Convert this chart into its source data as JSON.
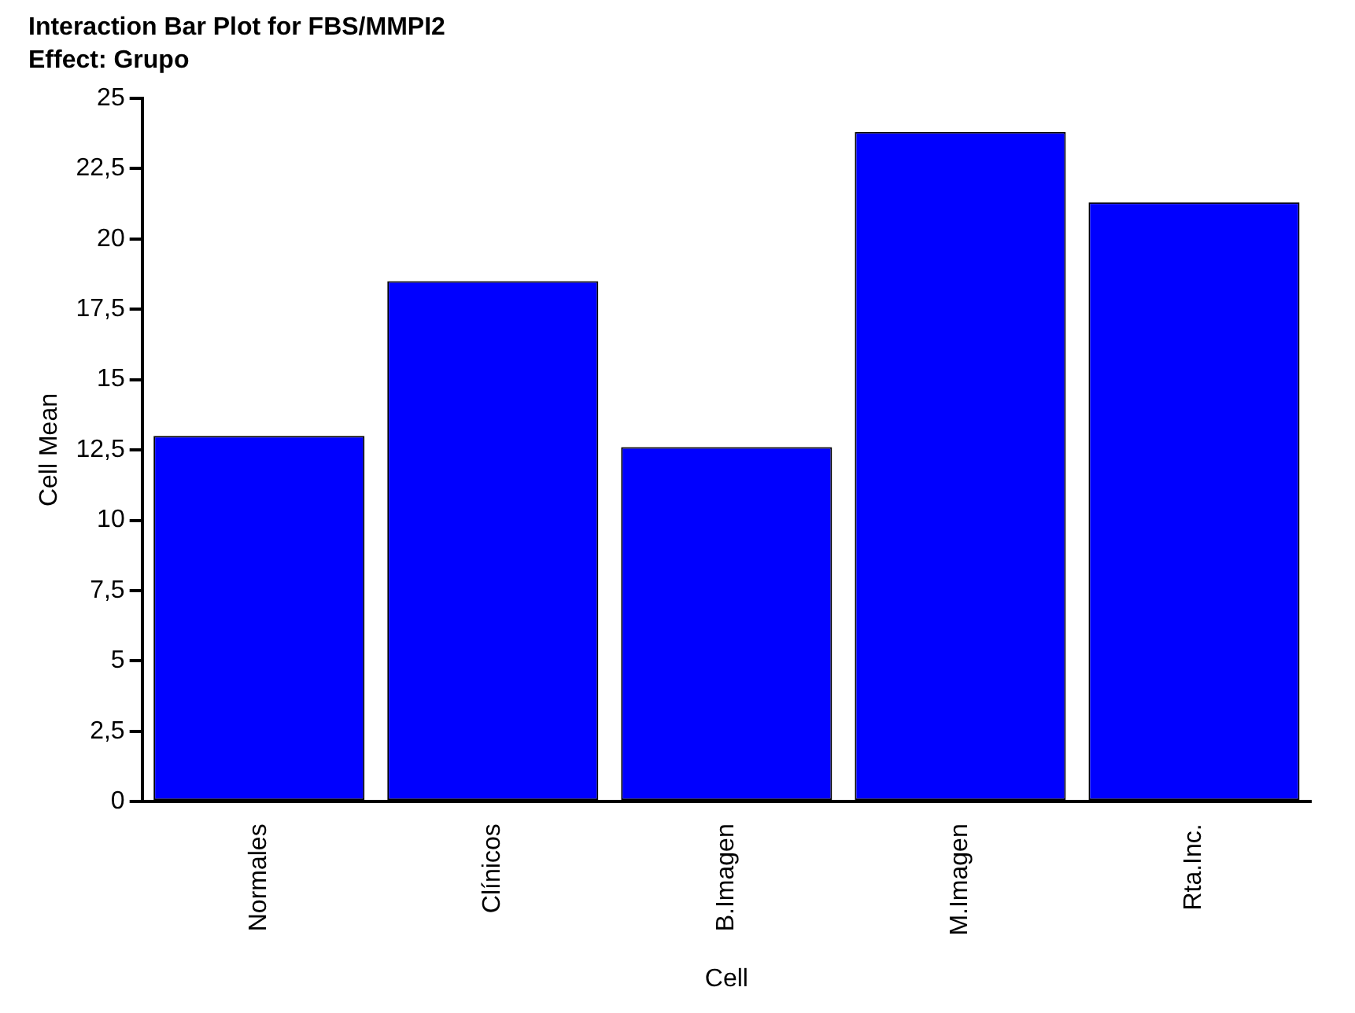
{
  "chart_data": {
    "type": "bar",
    "title": "Interaction Bar Plot for FBS/MMPI2",
    "subtitle": "Effect: Grupo",
    "xlabel": "Cell",
    "ylabel": "Cell Mean",
    "categories": [
      "Normales",
      "Clínicos",
      "B.Imagen",
      "M.Imagen",
      "Rta.Inc."
    ],
    "values": [
      13.0,
      18.5,
      12.6,
      23.8,
      21.3
    ],
    "color": "#0000ff",
    "ylim": [
      0,
      25
    ],
    "yticks": [
      0,
      {
        "value": 2.5,
        "label": "2,5"
      },
      5,
      {
        "value": 7.5,
        "label": "7,5"
      },
      10,
      {
        "value": 12.5,
        "label": "12,5"
      },
      15,
      {
        "value": 17.5,
        "label": "17,5"
      },
      20,
      {
        "value": 22.5,
        "label": "22,5"
      },
      25
    ],
    "grid": false,
    "legend": false
  }
}
